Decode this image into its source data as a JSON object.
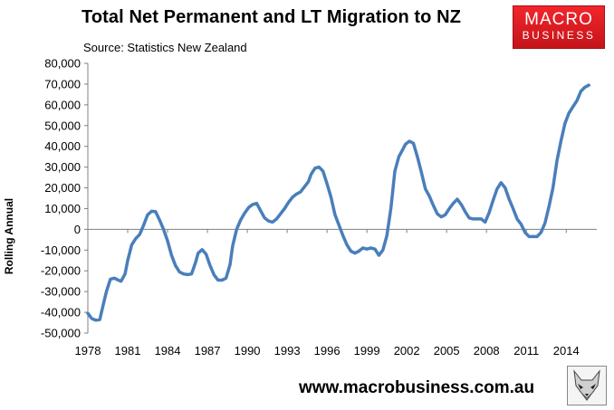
{
  "header": {
    "title": "Total Net Permanent and LT Migration to NZ",
    "source": "Source: Statistics New Zealand"
  },
  "logo": {
    "line1": "MACRO",
    "line2": "BUSINESS",
    "color": "#e31e24",
    "icon": "macrobusiness-logo"
  },
  "footer": {
    "url": "www.macrobusiness.com.au",
    "icon": "fox-icon"
  },
  "colors": {
    "line": "#4a7ebb",
    "axis": "#808080"
  },
  "chart_data": {
    "type": "line",
    "title": "Total Net Permanent and LT Migration to NZ",
    "subtitle": "Source: Statistics New Zealand",
    "xlabel": "",
    "ylabel": "Rolling Annual",
    "xlim": [
      1978,
      2016.3
    ],
    "ylim": [
      -50000,
      80000
    ],
    "x_ticks": [
      "1978",
      "1981",
      "1984",
      "1987",
      "1990",
      "1993",
      "1996",
      "1999",
      "2002",
      "2005",
      "2008",
      "2011",
      "2014"
    ],
    "y_ticks": [
      "-50,000",
      "-40,000",
      "-30,000",
      "-20,000",
      "-10,000",
      "0",
      "10,000",
      "20,000",
      "30,000",
      "40,000",
      "50,000",
      "60,000",
      "70,000",
      "80,000"
    ],
    "grid": false,
    "legend": "none",
    "series": [
      {
        "color": "#4a7ebb",
        "x": [
          1978.0,
          1978.3,
          1978.6,
          1978.9,
          1979.1,
          1979.4,
          1979.7,
          1980.0,
          1980.3,
          1980.5,
          1980.8,
          1981.0,
          1981.3,
          1981.6,
          1981.9,
          1982.2,
          1982.5,
          1982.8,
          1983.1,
          1983.4,
          1983.7,
          1984.0,
          1984.3,
          1984.6,
          1984.9,
          1985.2,
          1985.5,
          1985.8,
          1986.1,
          1986.3,
          1986.6,
          1986.9,
          1987.2,
          1987.5,
          1987.8,
          1988.1,
          1988.4,
          1988.7,
          1988.9,
          1989.2,
          1989.5,
          1989.8,
          1990.1,
          1990.4,
          1990.7,
          1991.0,
          1991.3,
          1991.6,
          1991.9,
          1992.2,
          1992.5,
          1992.8,
          1993.1,
          1993.4,
          1993.7,
          1994.0,
          1994.3,
          1994.6,
          1994.8,
          1995.1,
          1995.4,
          1995.7,
          1996.0,
          1996.3,
          1996.6,
          1996.9,
          1997.2,
          1997.5,
          1997.8,
          1998.1,
          1998.4,
          1998.7,
          1999.0,
          1999.3,
          1999.6,
          1999.9,
          2000.2,
          2000.5,
          2000.8,
          2001.1,
          2001.4,
          2001.7,
          2001.9,
          2002.2,
          2002.5,
          2002.8,
          2003.1,
          2003.4,
          2003.7,
          2004.0,
          2004.3,
          2004.6,
          2004.9,
          2005.2,
          2005.5,
          2005.8,
          2006.1,
          2006.4,
          2006.7,
          2007.0,
          2007.3,
          2007.6,
          2007.9,
          2008.2,
          2008.5,
          2008.8,
          2009.1,
          2009.4,
          2009.7,
          2010.0,
          2010.3,
          2010.6,
          2010.9,
          2011.2,
          2011.5,
          2011.8,
          2012.1,
          2012.4,
          2012.7,
          2013.0,
          2013.3,
          2013.6,
          2013.9,
          2014.2,
          2014.5,
          2014.8,
          2015.1,
          2015.4,
          2015.7
        ],
        "y": [
          -40500,
          -43000,
          -43800,
          -43500,
          -38000,
          -30000,
          -24000,
          -23500,
          -24500,
          -25000,
          -21500,
          -15000,
          -7500,
          -4500,
          -2500,
          2000,
          7000,
          8700,
          8500,
          4500,
          0,
          -5500,
          -12500,
          -17500,
          -20500,
          -21500,
          -21800,
          -21500,
          -16000,
          -11500,
          -9800,
          -12000,
          -17500,
          -22000,
          -24500,
          -24500,
          -23500,
          -17000,
          -8000,
          0,
          4500,
          7800,
          10500,
          12000,
          12500,
          9000,
          5500,
          4000,
          3500,
          5000,
          7500,
          10000,
          13000,
          15500,
          17000,
          18000,
          20500,
          23000,
          26500,
          29500,
          30000,
          28000,
          22000,
          15500,
          7000,
          2000,
          -3000,
          -7500,
          -10500,
          -11500,
          -10500,
          -9000,
          -9500,
          -9000,
          -9500,
          -12500,
          -10000,
          -3000,
          10000,
          28000,
          35000,
          38500,
          41000,
          42500,
          41500,
          35000,
          27500,
          19500,
          16000,
          11500,
          7500,
          6000,
          7000,
          10000,
          12500,
          14500,
          12000,
          8500,
          5500,
          5000,
          5000,
          5000,
          3500,
          8000,
          14000,
          19500,
          22500,
          20000,
          14500,
          10000,
          5000,
          2500,
          -1500,
          -3500,
          -3500,
          -3500,
          -1500,
          3000,
          11000,
          20000,
          33000,
          42500,
          51000,
          56000,
          59000,
          62000,
          66500,
          68500,
          69500
        ]
      }
    ]
  }
}
